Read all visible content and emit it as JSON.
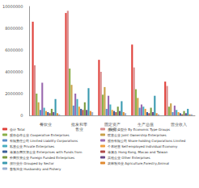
{
  "chart_data": {
    "type": "bar",
    "categories": [
      "餐饮业",
      "批发和零售业",
      "固定资产投资",
      "生产总值",
      "营业收入"
    ],
    "ylim": [
      0,
      10000000
    ],
    "yticks": [
      0,
      2000000,
      4000000,
      6000000,
      8000000,
      10000000
    ],
    "grid": false,
    "legend": "bottom",
    "series": [
      {
        "name": "合计 Total",
        "color": "#e0403a",
        "values": [
          8600000,
          9400000,
          5100000,
          6500000,
          3100000
        ]
      },
      {
        "name": "按经济类型分 By Economic Type Groups",
        "color": "#d98c8c",
        "values": [
          4600000,
          9600000,
          4000000,
          4400000,
          2700000
        ]
      },
      {
        "name": "股份合作企业 Cooperative Enterprises",
        "color": "#8ab04a",
        "values": [
          2000000,
          4300000,
          1900000,
          2400000,
          800000
        ]
      },
      {
        "name": "联营企业 Joint Ownership Enterprises",
        "color": "#c9a24a",
        "values": [
          1200000,
          2800000,
          2600000,
          1600000,
          1100000
        ]
      },
      {
        "name": "有限责任公司 Limited Liability Corporations",
        "color": "#5a8fc9",
        "values": [
          500000,
          900000,
          600000,
          700000,
          300000
        ]
      },
      {
        "name": "股份有限公司 Share-holding Corporations Limited",
        "color": "#9c6bb0",
        "values": [
          3000000,
          2000000,
          1800000,
          1000000,
          900000
        ]
      },
      {
        "name": "私营企业 Private Enterprises",
        "color": "#4aaec0",
        "values": [
          700000,
          1500000,
          1000000,
          800000,
          500000
        ]
      },
      {
        "name": "个体经营 Self-employed Individual Economy",
        "color": "#f0a040",
        "values": [
          400000,
          800000,
          500000,
          600000,
          300000
        ]
      },
      {
        "name": "港澳台商投资企业 Enterprises with Funds from",
        "color": "#3a5f9a",
        "values": [
          300000,
          600000,
          400000,
          300000,
          200000
        ]
      },
      {
        "name": "港澳台 Hong Kong, Macao and Taiwan",
        "color": "#b04a48",
        "values": [
          200000,
          500000,
          300000,
          200000,
          100000
        ]
      },
      {
        "name": "外商投资企业 Foreign Funded Enterprises",
        "color": "#7a9a40",
        "values": [
          600000,
          1200000,
          800000,
          700000,
          400000
        ]
      },
      {
        "name": "其他企业 Other Enterprises",
        "color": "#6a4a8a",
        "values": [
          300000,
          500000,
          400000,
          300000,
          200000
        ]
      },
      {
        "name": "按行业分 Grouped by Sector",
        "color": "#3a9ab0",
        "values": [
          1500000,
          2500000,
          1300000,
          1800000,
          600000
        ]
      },
      {
        "name": "农林牧渔业 Agriculture,Forestry,Animal",
        "color": "#e08a30",
        "values": [
          200000,
          400000,
          300000,
          200000,
          100000
        ]
      },
      {
        "name": "畜牧渔业 Husbandry and Fishery",
        "color": "#9ab0d0",
        "values": [
          100000,
          300000,
          200000,
          100000,
          100000
        ]
      }
    ]
  }
}
